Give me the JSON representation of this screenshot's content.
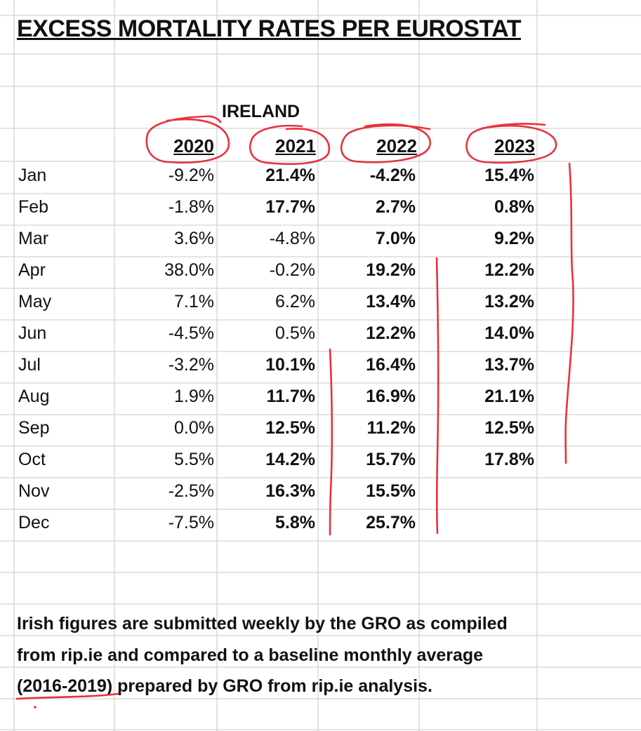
{
  "title": "EXCESS MORTALITY RATES PER EUROSTAT",
  "country": "IRELAND",
  "years": [
    "2020",
    "2021",
    "2022",
    "2023"
  ],
  "rows": [
    {
      "month": "Jan",
      "values": [
        "-9.2%",
        "21.4%",
        "-4.2%",
        "15.4%"
      ],
      "bold": [
        false,
        true,
        true,
        true
      ]
    },
    {
      "month": "Feb",
      "values": [
        "-1.8%",
        "17.7%",
        "2.7%",
        "0.8%"
      ],
      "bold": [
        false,
        true,
        true,
        true
      ]
    },
    {
      "month": "Mar",
      "values": [
        "3.6%",
        "-4.8%",
        "7.0%",
        "9.2%"
      ],
      "bold": [
        false,
        false,
        true,
        true
      ]
    },
    {
      "month": "Apr",
      "values": [
        "38.0%",
        "-0.2%",
        "19.2%",
        "12.2%"
      ],
      "bold": [
        false,
        false,
        true,
        true
      ]
    },
    {
      "month": "May",
      "values": [
        "7.1%",
        "6.2%",
        "13.4%",
        "13.2%"
      ],
      "bold": [
        false,
        false,
        true,
        true
      ]
    },
    {
      "month": "Jun",
      "values": [
        "-4.5%",
        "0.5%",
        "12.2%",
        "14.0%"
      ],
      "bold": [
        false,
        false,
        true,
        true
      ]
    },
    {
      "month": "Jul",
      "values": [
        "-3.2%",
        "10.1%",
        "16.4%",
        "13.7%"
      ],
      "bold": [
        false,
        true,
        true,
        true
      ]
    },
    {
      "month": "Aug",
      "values": [
        "1.9%",
        "11.7%",
        "16.9%",
        "21.1%"
      ],
      "bold": [
        false,
        true,
        true,
        true
      ]
    },
    {
      "month": "Sep",
      "values": [
        "0.0%",
        "12.5%",
        "11.2%",
        "12.5%"
      ],
      "bold": [
        false,
        true,
        true,
        true
      ]
    },
    {
      "month": "Oct",
      "values": [
        "5.5%",
        "14.2%",
        "15.7%",
        "17.8%"
      ],
      "bold": [
        false,
        true,
        true,
        true
      ]
    },
    {
      "month": "Nov",
      "values": [
        "-2.5%",
        "16.3%",
        "15.5%",
        ""
      ],
      "bold": [
        false,
        true,
        true,
        true
      ]
    },
    {
      "month": "Dec",
      "values": [
        "-7.5%",
        "5.8%",
        "25.7%",
        ""
      ],
      "bold": [
        false,
        true,
        true,
        true
      ]
    }
  ],
  "note_lines": [
    "Irish figures are submitted weekly by the GRO as compiled",
    "from rip.ie and compared to a baseline monthly average",
    "(2016-2019) prepared by GRO from rip.ie analysis."
  ],
  "colors": {
    "annotation": "#e8323c",
    "gridline": "#d4d4d4"
  }
}
